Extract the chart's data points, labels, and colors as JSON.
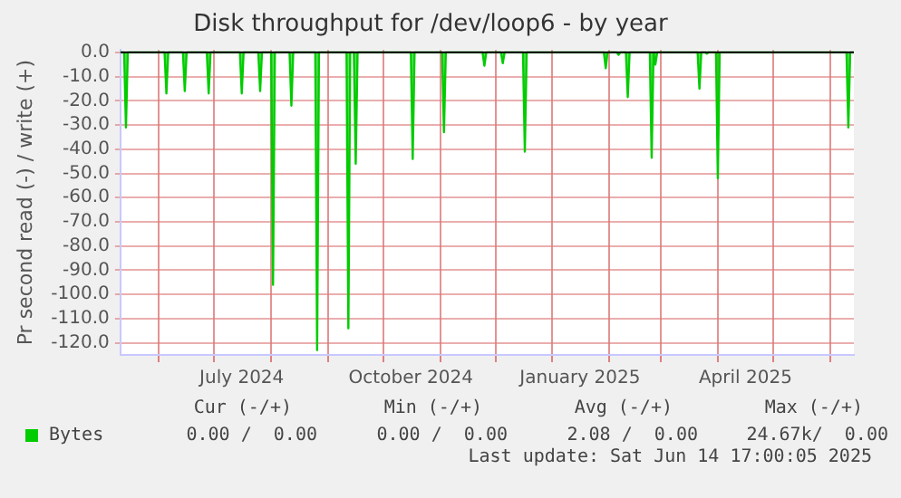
{
  "chart_data": {
    "type": "area",
    "title": "Disk throughput for /dev/loop6 - by year",
    "ylabel": "Pr second read (-) / write (+)",
    "x": [
      "2024-05-11",
      "2024-05-13",
      "2024-05-14",
      "2024-05-15",
      "2024-06-04",
      "2024-06-05",
      "2024-06-06",
      "2024-06-14",
      "2024-06-15",
      "2024-06-16",
      "2024-06-27",
      "2024-06-28",
      "2024-06-29",
      "2024-07-15",
      "2024-07-16",
      "2024-07-17",
      "2024-07-25",
      "2024-07-26",
      "2024-07-27",
      "2024-08-01",
      "2024-08-02",
      "2024-08-03",
      "2024-08-11",
      "2024-08-12",
      "2024-08-13",
      "2024-08-25",
      "2024-08-26",
      "2024-08-27",
      "2024-09-11",
      "2024-09-12",
      "2024-09-13",
      "2024-09-15",
      "2024-09-16",
      "2024-09-17",
      "2024-10-16",
      "2024-10-17",
      "2024-10-18",
      "2024-11-02",
      "2024-11-03",
      "2024-11-04",
      "2024-11-24",
      "2024-11-25",
      "2024-11-26",
      "2024-12-04",
      "2024-12-05",
      "2024-12-06",
      "2024-12-16",
      "2024-12-17",
      "2024-12-18",
      "2025-01-29",
      "2025-01-30",
      "2025-01-31",
      "2025-02-05",
      "2025-02-06",
      "2025-02-07",
      "2025-02-10",
      "2025-02-11",
      "2025-02-12",
      "2025-02-23",
      "2025-02-24",
      "2025-02-25",
      "2025-02-26",
      "2025-02-27",
      "2025-03-21",
      "2025-03-22",
      "2025-03-23",
      "2025-03-25",
      "2025-03-26",
      "2025-03-27",
      "2025-03-31",
      "2025-04-01",
      "2025-04-02",
      "2025-06-10",
      "2025-06-11",
      "2025-06-12",
      "2025-06-14"
    ],
    "series": [
      {
        "name": "Bytes",
        "color": "#00cc00",
        "values": [
          0,
          0,
          -31,
          0,
          0,
          -17,
          0,
          0,
          -16,
          0,
          0,
          -17,
          0,
          0,
          -17,
          0,
          0,
          -16,
          0,
          0,
          -96,
          0,
          0,
          -22,
          0,
          0,
          -123,
          0,
          0,
          -114,
          0,
          0,
          -46,
          0,
          0,
          -44,
          0,
          0,
          -33,
          0,
          0,
          -5.5,
          0,
          0,
          -4.5,
          0,
          0,
          -41,
          0,
          0,
          -6.5,
          0,
          0,
          -1,
          0,
          0,
          -18.5,
          0,
          0,
          -43.5,
          0,
          -5,
          0,
          0,
          -15,
          0,
          0,
          -0.5,
          0,
          0,
          -52,
          0,
          0,
          -31,
          0,
          0
        ]
      }
    ],
    "xlim": [
      "2024-05-11",
      "2025-06-14"
    ],
    "xticks": [
      {
        "value": "2024-06-01",
        "label": null
      },
      {
        "value": "2024-07-01",
        "label": null
      },
      {
        "value": "2024-07-16",
        "label": "July 2024"
      },
      {
        "value": "2024-08-01",
        "label": null
      },
      {
        "value": "2024-09-01",
        "label": null
      },
      {
        "value": "2024-10-01",
        "label": null
      },
      {
        "value": "2024-10-16",
        "label": "October 2024"
      },
      {
        "value": "2024-11-01",
        "label": null
      },
      {
        "value": "2024-12-01",
        "label": null
      },
      {
        "value": "2025-01-01",
        "label": null
      },
      {
        "value": "2025-01-16",
        "label": "January 2025"
      },
      {
        "value": "2025-02-01",
        "label": null
      },
      {
        "value": "2025-03-01",
        "label": null
      },
      {
        "value": "2025-04-01",
        "label": null
      },
      {
        "value": "2025-04-16",
        "label": "April 2025"
      },
      {
        "value": "2025-05-01",
        "label": null
      },
      {
        "value": "2025-06-01",
        "label": null
      }
    ],
    "ylim": [
      -125,
      1
    ],
    "yticks": [
      {
        "value": 0,
        "label": "0.0"
      },
      {
        "value": -10,
        "label": "-10.0"
      },
      {
        "value": -20,
        "label": "-20.0"
      },
      {
        "value": -30,
        "label": "-30.0"
      },
      {
        "value": -40,
        "label": "-40.0"
      },
      {
        "value": -50,
        "label": "-50.0"
      },
      {
        "value": -60,
        "label": "-60.0"
      },
      {
        "value": -70,
        "label": "-70.0"
      },
      {
        "value": -80,
        "label": "-80.0"
      },
      {
        "value": -90,
        "label": "-90.0"
      },
      {
        "value": -100,
        "label": "-100.0"
      },
      {
        "value": -110,
        "label": "-110.0"
      },
      {
        "value": -120,
        "label": "-120.0"
      }
    ],
    "grid": true,
    "legend": "bottom",
    "marker": "none",
    "annotations": [
      "Cur (-/+)",
      "Min (-/+)",
      "Avg (-/+)",
      "Max (-/+)",
      "0.00 /  0.00",
      "0.00 /  0.00",
      "2.08 /  0.00",
      "24.67k/  0.00",
      "Last update: Sat Jun 14 17:00:05 2025"
    ]
  }
}
